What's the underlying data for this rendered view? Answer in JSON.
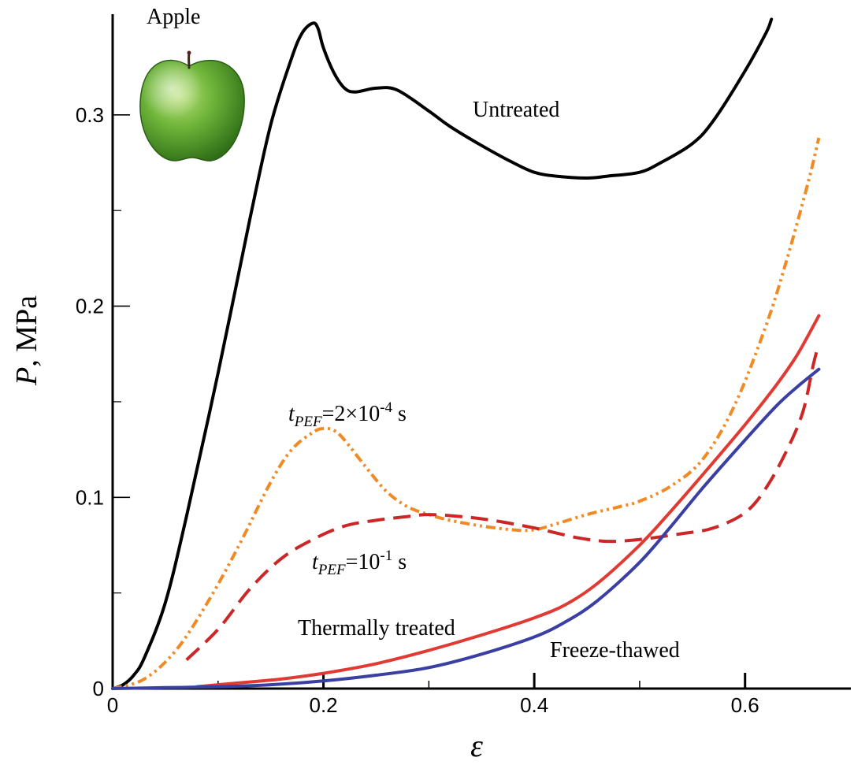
{
  "chart_data": {
    "type": "line",
    "xlabel": "ε",
    "ylabel_symbol": "P",
    "ylabel_rest": ", MPa",
    "xlim": [
      0,
      0.7
    ],
    "ylim": [
      0,
      0.35
    ],
    "x_ticks": [
      0,
      0.2,
      0.4,
      0.6
    ],
    "x_tick_labels": [
      "0",
      "0.2",
      "0.4",
      "0.6"
    ],
    "x_minor_ticks": [
      0.1,
      0.3,
      0.5
    ],
    "y_ticks": [
      0,
      0.1,
      0.2,
      0.3
    ],
    "y_tick_labels": [
      "0",
      "0.1",
      "0.2",
      "0.3"
    ],
    "y_minor_ticks": [
      0.05,
      0.15,
      0.25
    ],
    "grid": false,
    "series": [
      {
        "key": "untreated",
        "color": "#000000",
        "dash": "solid",
        "x": [
          0,
          0.01,
          0.02,
          0.03,
          0.05,
          0.07,
          0.1,
          0.13,
          0.15,
          0.17,
          0.18,
          0.19,
          0.195,
          0.2,
          0.21,
          0.22,
          0.23,
          0.25,
          0.27,
          0.3,
          0.32,
          0.35,
          0.38,
          0.4,
          0.42,
          0.45,
          0.47,
          0.5,
          0.52,
          0.55,
          0.57,
          0.6,
          0.62,
          0.625
        ],
        "y": [
          0,
          0.002,
          0.007,
          0.016,
          0.045,
          0.09,
          0.165,
          0.245,
          0.295,
          0.33,
          0.343,
          0.348,
          0.345,
          0.335,
          0.322,
          0.314,
          0.312,
          0.314,
          0.313,
          0.302,
          0.294,
          0.284,
          0.275,
          0.27,
          0.268,
          0.267,
          0.268,
          0.27,
          0.275,
          0.285,
          0.297,
          0.323,
          0.343,
          0.35
        ]
      },
      {
        "key": "pef-short",
        "color": "#f08a24",
        "dash": "12,5,3,5,3,5",
        "x": [
          0,
          0.03,
          0.06,
          0.09,
          0.12,
          0.15,
          0.17,
          0.19,
          0.2,
          0.21,
          0.22,
          0.24,
          0.26,
          0.28,
          0.3,
          0.32,
          0.35,
          0.38,
          0.4,
          0.42,
          0.45,
          0.48,
          0.5,
          0.53,
          0.56,
          0.59,
          0.62,
          0.64,
          0.66,
          0.67
        ],
        "y": [
          0,
          0.005,
          0.02,
          0.045,
          0.075,
          0.108,
          0.125,
          0.134,
          0.136,
          0.135,
          0.13,
          0.116,
          0.103,
          0.095,
          0.091,
          0.088,
          0.085,
          0.083,
          0.083,
          0.086,
          0.091,
          0.095,
          0.098,
          0.106,
          0.12,
          0.148,
          0.19,
          0.225,
          0.265,
          0.288
        ]
      },
      {
        "key": "pef-long",
        "color": "#cc2727",
        "dash": "22,11",
        "x": [
          0.07,
          0.1,
          0.13,
          0.16,
          0.19,
          0.22,
          0.25,
          0.28,
          0.3,
          0.33,
          0.36,
          0.4,
          0.44,
          0.47,
          0.5,
          0.54,
          0.57,
          0.6,
          0.62,
          0.64,
          0.655,
          0.665,
          0.67
        ],
        "y": [
          0.015,
          0.031,
          0.052,
          0.068,
          0.078,
          0.085,
          0.088,
          0.09,
          0.091,
          0.09,
          0.088,
          0.084,
          0.079,
          0.077,
          0.078,
          0.081,
          0.084,
          0.092,
          0.105,
          0.125,
          0.145,
          0.17,
          0.18
        ]
      },
      {
        "key": "thermal",
        "color": "#e03a33",
        "dash": "solid",
        "x": [
          0.08,
          0.12,
          0.16,
          0.2,
          0.25,
          0.3,
          0.35,
          0.4,
          0.43,
          0.46,
          0.5,
          0.53,
          0.56,
          0.6,
          0.63,
          0.65,
          0.67
        ],
        "y": [
          0.001,
          0.003,
          0.005,
          0.008,
          0.013,
          0.02,
          0.028,
          0.037,
          0.044,
          0.055,
          0.075,
          0.093,
          0.112,
          0.138,
          0.159,
          0.175,
          0.195
        ]
      },
      {
        "key": "freeze",
        "color": "#3a3fa3",
        "dash": "solid",
        "x": [
          0,
          0.05,
          0.1,
          0.15,
          0.2,
          0.25,
          0.3,
          0.35,
          0.4,
          0.43,
          0.46,
          0.5,
          0.53,
          0.56,
          0.6,
          0.63,
          0.65,
          0.67
        ],
        "y": [
          0,
          0.0005,
          0.001,
          0.002,
          0.004,
          0.007,
          0.011,
          0.018,
          0.027,
          0.035,
          0.046,
          0.066,
          0.085,
          0.105,
          0.13,
          0.148,
          0.158,
          0.167
        ]
      }
    ],
    "annotations": {
      "apple": "Apple",
      "untreated": "Untreated",
      "pef_short_t": "t",
      "pef_short_sub": "PEF",
      "pef_short_eq": "=2×10",
      "pef_short_sup": "-4",
      "pef_short_unit": " s",
      "pef_long_t": "t",
      "pef_long_sub": "PEF",
      "pef_long_eq": "=10",
      "pef_long_sup": "-1",
      "pef_long_unit": " s",
      "thermal": "Thermally treated",
      "freeze": "Freeze-thawed"
    }
  }
}
